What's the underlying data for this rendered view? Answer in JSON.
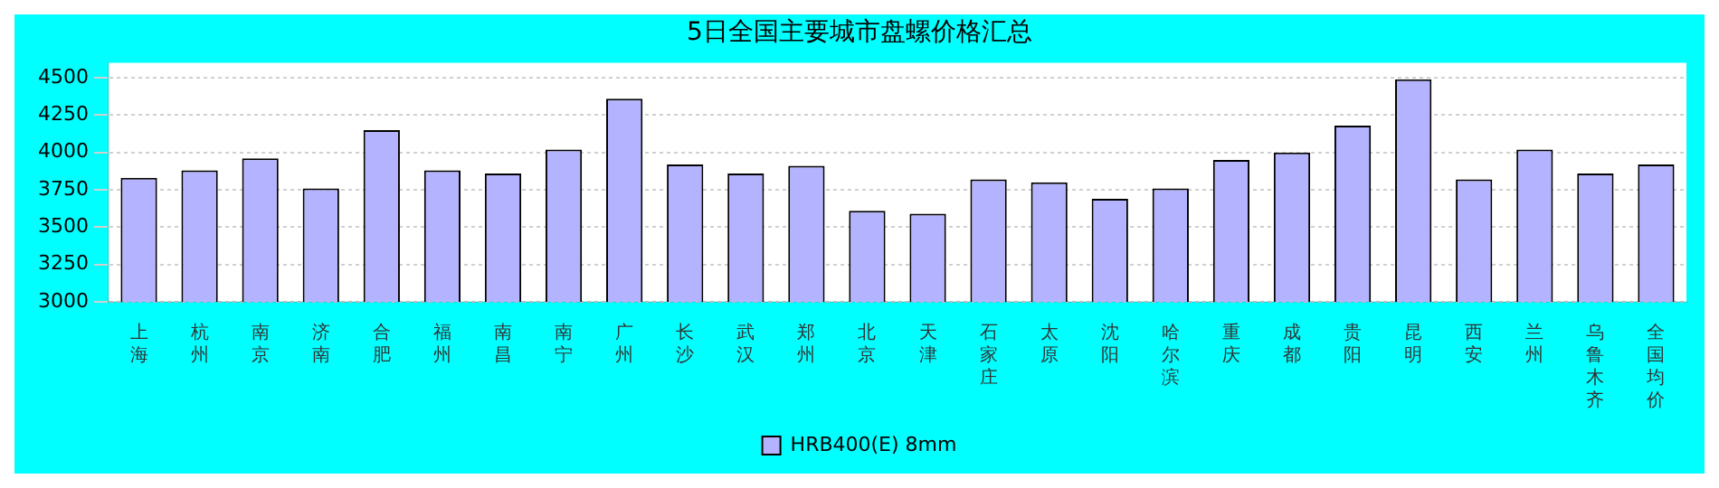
{
  "chart_data": {
    "type": "bar",
    "title": "5日全国主要城市盘螺价格汇总",
    "categories": [
      "上海",
      "杭州",
      "南京",
      "济南",
      "合肥",
      "福州",
      "南昌",
      "南宁",
      "广州",
      "长沙",
      "武汉",
      "郑州",
      "北京",
      "天津",
      "石家庄",
      "太原",
      "沈阳",
      "哈尔滨",
      "重庆",
      "成都",
      "贵阳",
      "昆明",
      "西安",
      "兰州",
      "乌鲁木齐",
      "全国均价"
    ],
    "series": [
      {
        "name": "HRB400(E) 8mm",
        "color": "#b3b3ff",
        "values": [
          3830,
          3880,
          3960,
          3760,
          4150,
          3880,
          3860,
          4020,
          4360,
          3920,
          3860,
          3910,
          3610,
          3590,
          3820,
          3800,
          3690,
          3760,
          3950,
          4000,
          4180,
          4490,
          3820,
          4020,
          3860,
          3920
        ]
      }
    ],
    "ylim": [
      3000,
      4600
    ],
    "yticks": [
      3000,
      3250,
      3500,
      3750,
      4000,
      4250,
      4500
    ],
    "grid": "y",
    "legend": "bottom"
  }
}
